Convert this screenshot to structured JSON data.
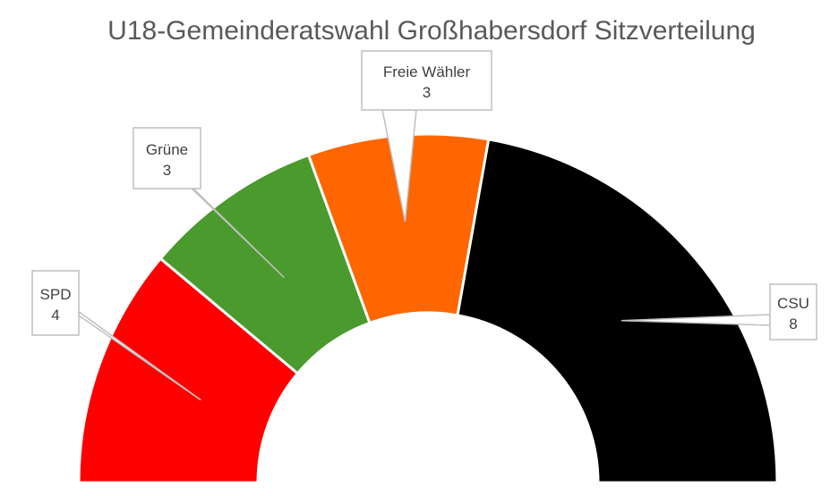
{
  "chart_data": {
    "type": "pie",
    "subtype": "semicircle-donut",
    "title": "U18-Gemeinderatswahl Großhabersdorf Sitzverteilung",
    "categories": [
      "SPD",
      "Grüne",
      "Freie Wähler",
      "CSU"
    ],
    "values": [
      4,
      3,
      3,
      8
    ],
    "colors": [
      "#ff0000",
      "#4a9a2e",
      "#ff6600",
      "#000000"
    ],
    "data_labels": [
      {
        "name": "SPD",
        "value": "4"
      },
      {
        "name": "Grüne",
        "value": "3"
      },
      {
        "name": "Freie Wähler",
        "value": "3"
      },
      {
        "name": "CSU",
        "value": "8"
      }
    ],
    "legend": "none",
    "grid": false
  }
}
